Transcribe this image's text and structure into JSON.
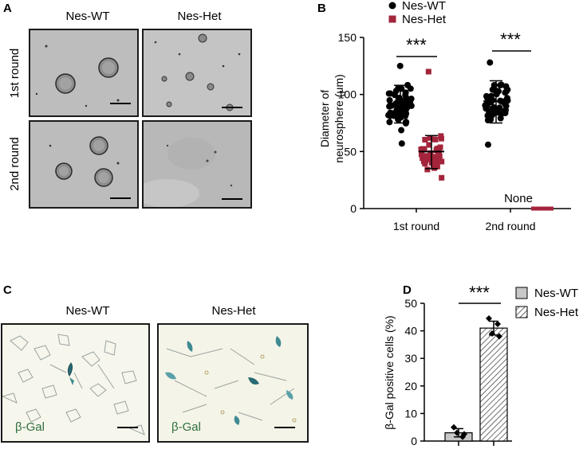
{
  "panel_a": {
    "letter": "A",
    "col_labels": [
      "Nes-WT",
      "Nes-Het"
    ],
    "row_labels": [
      "1st round",
      "2nd round"
    ],
    "images": [
      {
        "name": "wt-1st",
        "bg": "#bdbdbd"
      },
      {
        "name": "het-1st",
        "bg": "#c4c4c4"
      },
      {
        "name": "wt-2nd",
        "bg": "#bcbcbc"
      },
      {
        "name": "het-2nd",
        "bg": "#b8b8b8"
      }
    ]
  },
  "panel_b": {
    "letter": "B",
    "chart_data": {
      "type": "scatter",
      "ylabel_lines": [
        "Diameter of",
        "neurosphere (μm)"
      ],
      "ylim": [
        0,
        150
      ],
      "yticks": [
        0,
        50,
        100,
        150
      ],
      "categories": [
        "1st round",
        "2nd round"
      ],
      "legend": [
        {
          "name": "Nes-WT",
          "color": "#000000",
          "marker": "circle"
        },
        {
          "name": "Nes-Het",
          "color": "#a3243b",
          "marker": "square"
        }
      ],
      "series": [
        {
          "name": "Nes-WT",
          "category": "1st round",
          "mean": 92,
          "sd_low": 75,
          "sd_high": 108,
          "min": 57,
          "max": 125,
          "n": 60
        },
        {
          "name": "Nes-Het",
          "category": "1st round",
          "mean": 50,
          "sd_low": 35,
          "sd_high": 64,
          "min": 27,
          "max": 120,
          "n": 50
        },
        {
          "name": "Nes-WT",
          "category": "2nd round",
          "mean": 94,
          "sd_low": 75,
          "sd_high": 112,
          "min": 56,
          "max": 128,
          "n": 55
        },
        {
          "name": "Nes-Het",
          "category": "2nd round",
          "mean": 0,
          "sd_low": 0,
          "sd_high": 0,
          "min": 0,
          "max": 0,
          "n": 0
        }
      ],
      "annotations": [
        "***",
        "***",
        "None"
      ]
    }
  },
  "panel_c": {
    "letter": "C",
    "col_labels": [
      "Nes-WT",
      "Nes-Het"
    ],
    "stain_label": "β-Gal"
  },
  "panel_d": {
    "letter": "D",
    "chart_data": {
      "type": "bar",
      "ylabel": "β-Gal positive cells (%)",
      "ylim": [
        0,
        50
      ],
      "yticks": [
        0,
        10,
        20,
        30,
        40,
        50
      ],
      "categories": [
        "Nes-WT",
        "Nes-Het"
      ],
      "values": [
        3,
        41
      ],
      "errors": [
        1.5,
        2.5
      ],
      "points": [
        [
          5,
          1.5,
          3,
          2.5
        ],
        [
          44.5,
          42.5,
          39,
          38
        ]
      ],
      "significance": "***",
      "legend": [
        {
          "name": "Nes-WT",
          "fill": "#c8c8c8",
          "pattern": "solid"
        },
        {
          "name": "Nes-Het",
          "fill": "#ffffff",
          "pattern": "hatch"
        }
      ]
    }
  }
}
